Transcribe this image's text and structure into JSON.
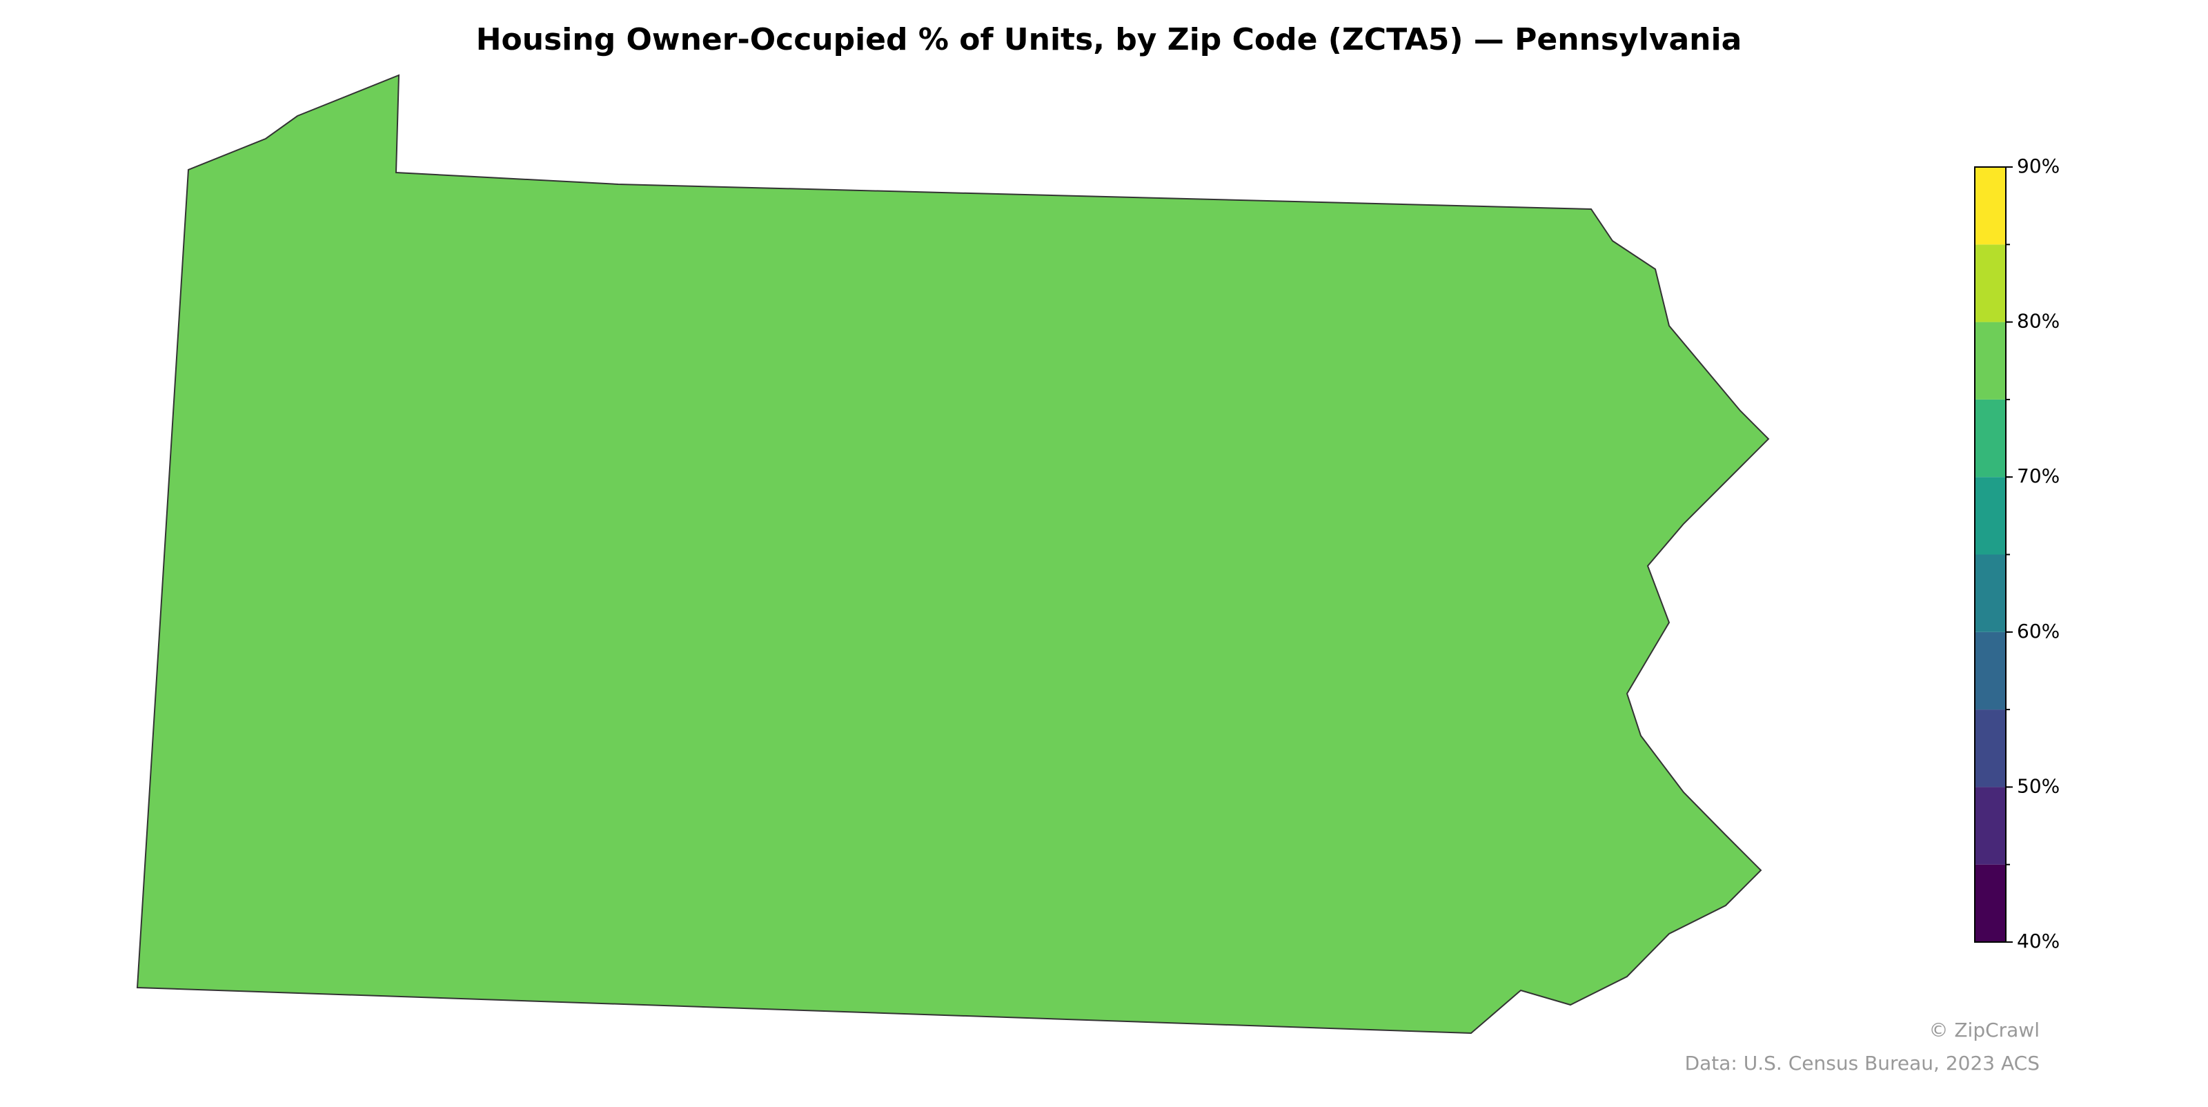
{
  "map": {
    "title": "Housing Owner-Occupied % of Units, by Zip Code (ZCTA5) — Pennsylvania",
    "colorbar": {
      "lim": [
        40,
        90
      ],
      "bins": [
        40,
        45,
        50,
        55,
        60,
        65,
        70,
        75,
        80,
        85,
        90
      ],
      "colors": [
        "#440154",
        "#482878",
        "#3e4a89",
        "#31688e",
        "#26828e",
        "#1f9e89",
        "#35b779",
        "#6ece58",
        "#b5de2b",
        "#fde725"
      ],
      "ticks": [
        {
          "value": 40,
          "label": "40%"
        },
        {
          "value": 50,
          "label": "50%"
        },
        {
          "value": 60,
          "label": "60%"
        },
        {
          "value": 70,
          "label": "70%"
        },
        {
          "value": 80,
          "label": "80%"
        },
        {
          "value": 90,
          "label": "90%"
        }
      ]
    },
    "credits": [
      "© ZipCrawl",
      "Data: U.S. Census Bureau, 2023 ACS"
    ]
  }
}
